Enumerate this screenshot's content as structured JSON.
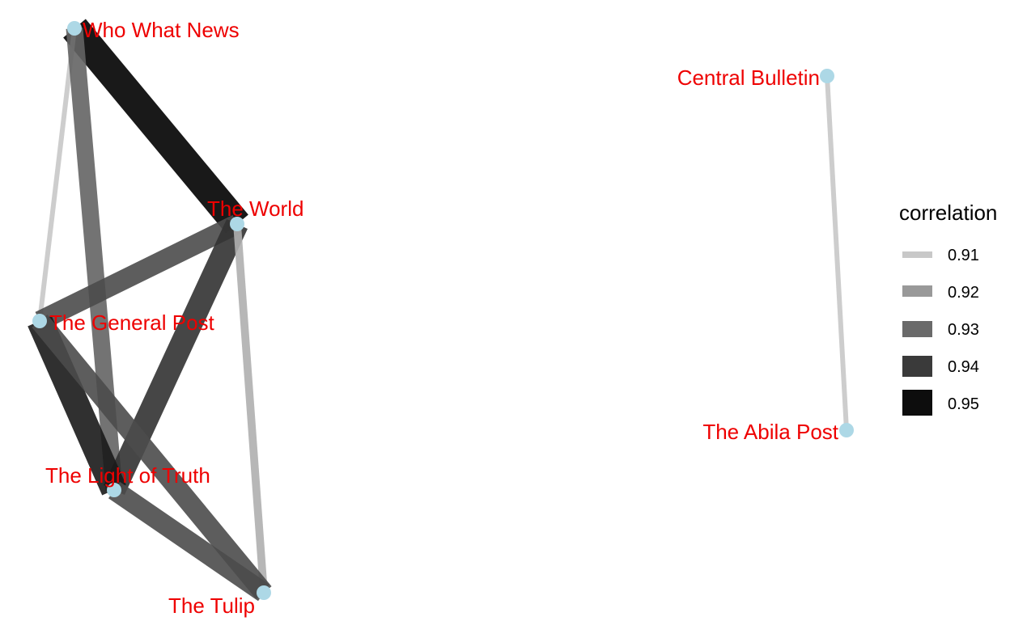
{
  "network": {
    "node_color": "#add8e6",
    "label_color": "#ee0000",
    "nodes": [
      {
        "id": "who",
        "label": "Who What News"
      },
      {
        "id": "world",
        "label": "The World"
      },
      {
        "id": "general",
        "label": "The General Post"
      },
      {
        "id": "light",
        "label": "The Light of Truth"
      },
      {
        "id": "tulip",
        "label": "The Tulip"
      },
      {
        "id": "central",
        "label": "Central Bulletin"
      },
      {
        "id": "abila",
        "label": "The Abila Post"
      }
    ],
    "edges": [
      {
        "source": "who",
        "target": "world",
        "correlation": 0.95
      },
      {
        "source": "who",
        "target": "general",
        "correlation": 0.91
      },
      {
        "source": "who",
        "target": "light",
        "correlation": 0.93
      },
      {
        "source": "world",
        "target": "general",
        "correlation": 0.935
      },
      {
        "source": "world",
        "target": "light",
        "correlation": 0.94
      },
      {
        "source": "world",
        "target": "tulip",
        "correlation": 0.915
      },
      {
        "source": "general",
        "target": "light",
        "correlation": 0.945
      },
      {
        "source": "general",
        "target": "tulip",
        "correlation": 0.935
      },
      {
        "source": "light",
        "target": "tulip",
        "correlation": 0.935
      },
      {
        "source": "central",
        "target": "abila",
        "correlation": 0.91
      }
    ]
  },
  "legend": {
    "title": "correlation",
    "items": [
      {
        "label": "0.91",
        "color": "#c8c8c8"
      },
      {
        "label": "0.92",
        "color": "#999999"
      },
      {
        "label": "0.93",
        "color": "#6a6a6a"
      },
      {
        "label": "0.94",
        "color": "#3a3a3a"
      },
      {
        "label": "0.95",
        "color": "#0d0d0d"
      }
    ]
  }
}
